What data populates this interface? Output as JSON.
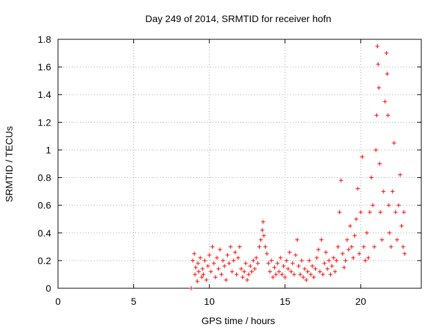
{
  "chart_data": {
    "type": "scatter",
    "title": "Day 249 of 2014, SRMTID for receiver hofn",
    "xlabel": "GPS time / hours",
    "ylabel": "SRMTID / TECUs",
    "xlim": [
      0,
      24
    ],
    "ylim": [
      0,
      1.8
    ],
    "xticks": [
      0,
      5,
      10,
      15,
      20
    ],
    "xtick_labels": [
      "0",
      "5",
      "10",
      "15",
      "20"
    ],
    "yticks": [
      0,
      0.2,
      0.4,
      0.6,
      0.8,
      1.0,
      1.2,
      1.4,
      1.6,
      1.8
    ],
    "ytick_labels": [
      "0",
      "0.2",
      "0.4",
      "0.6",
      "0.8",
      "1",
      "1.2",
      "1.4",
      "1.6",
      "1.8"
    ],
    "grid": true,
    "marker": "+",
    "color": "#ff0000",
    "series": [
      {
        "name": "SRMTID",
        "points": [
          [
            8.8,
            0.0
          ],
          [
            8.9,
            0.2
          ],
          [
            9.0,
            0.25
          ],
          [
            9.05,
            0.1
          ],
          [
            9.1,
            0.15
          ],
          [
            9.2,
            0.05
          ],
          [
            9.25,
            0.18
          ],
          [
            9.3,
            0.12
          ],
          [
            9.4,
            0.22
          ],
          [
            9.5,
            0.08
          ],
          [
            9.55,
            0.14
          ],
          [
            9.6,
            0.1
          ],
          [
            9.7,
            0.2
          ],
          [
            9.8,
            0.06
          ],
          [
            9.9,
            0.16
          ],
          [
            10.0,
            0.24
          ],
          [
            10.1,
            0.12
          ],
          [
            10.2,
            0.3
          ],
          [
            10.3,
            0.18
          ],
          [
            10.4,
            0.08
          ],
          [
            10.5,
            0.22
          ],
          [
            10.6,
            0.14
          ],
          [
            10.7,
            0.28
          ],
          [
            10.8,
            0.1
          ],
          [
            10.9,
            0.2
          ],
          [
            11.0,
            0.16
          ],
          [
            11.1,
            0.06
          ],
          [
            11.2,
            0.24
          ],
          [
            11.3,
            0.18
          ],
          [
            11.4,
            0.3
          ],
          [
            11.5,
            0.12
          ],
          [
            11.6,
            0.2
          ],
          [
            11.7,
            0.26
          ],
          [
            11.8,
            0.1
          ],
          [
            11.9,
            0.22
          ],
          [
            12.0,
            0.3
          ],
          [
            12.1,
            0.14
          ],
          [
            12.2,
            0.08
          ],
          [
            12.3,
            0.12
          ],
          [
            12.4,
            0.18
          ],
          [
            12.5,
            0.06
          ],
          [
            12.6,
            0.1
          ],
          [
            12.7,
            0.16
          ],
          [
            12.8,
            0.12
          ],
          [
            12.9,
            0.2
          ],
          [
            13.0,
            0.14
          ],
          [
            13.1,
            0.22
          ],
          [
            13.2,
            0.18
          ],
          [
            13.3,
            0.3
          ],
          [
            13.4,
            0.35
          ],
          [
            13.5,
            0.42
          ],
          [
            13.55,
            0.48
          ],
          [
            13.6,
            0.38
          ],
          [
            13.7,
            0.3
          ],
          [
            13.8,
            0.25
          ],
          [
            13.9,
            0.18
          ],
          [
            14.0,
            0.12
          ],
          [
            14.1,
            0.2
          ],
          [
            14.2,
            0.08
          ],
          [
            14.3,
            0.15
          ],
          [
            14.4,
            0.1
          ],
          [
            14.5,
            0.18
          ],
          [
            14.6,
            0.12
          ],
          [
            14.7,
            0.22
          ],
          [
            14.8,
            0.1
          ],
          [
            14.9,
            0.16
          ],
          [
            15.0,
            0.08
          ],
          [
            15.1,
            0.2
          ],
          [
            15.2,
            0.14
          ],
          [
            15.3,
            0.26
          ],
          [
            15.4,
            0.12
          ],
          [
            15.5,
            0.18
          ],
          [
            15.6,
            0.1
          ],
          [
            15.7,
            0.24
          ],
          [
            15.8,
            0.35
          ],
          [
            15.9,
            0.16
          ],
          [
            16.0,
            0.1
          ],
          [
            16.1,
            0.2
          ],
          [
            16.2,
            0.08
          ],
          [
            16.3,
            0.14
          ],
          [
            16.4,
            0.06
          ],
          [
            16.5,
            0.12
          ],
          [
            16.6,
            0.2
          ],
          [
            16.7,
            0.1
          ],
          [
            16.8,
            0.16
          ],
          [
            16.9,
            0.08
          ],
          [
            17.0,
            0.14
          ],
          [
            17.1,
            0.22
          ],
          [
            17.2,
            0.28
          ],
          [
            17.3,
            0.12
          ],
          [
            17.4,
            0.35
          ],
          [
            17.5,
            0.1
          ],
          [
            17.6,
            0.18
          ],
          [
            17.7,
            0.26
          ],
          [
            17.8,
            0.14
          ],
          [
            17.9,
            0.2
          ],
          [
            18.0,
            0.1
          ],
          [
            18.1,
            0.16
          ],
          [
            18.2,
            0.22
          ],
          [
            18.3,
            0.12
          ],
          [
            18.4,
            0.2
          ],
          [
            18.5,
            0.3
          ],
          [
            18.6,
            0.55
          ],
          [
            18.7,
            0.78
          ],
          [
            18.8,
            0.25
          ],
          [
            18.9,
            0.15
          ],
          [
            19.0,
            0.2
          ],
          [
            19.1,
            0.35
          ],
          [
            19.2,
            0.28
          ],
          [
            19.3,
            0.45
          ],
          [
            19.4,
            0.3
          ],
          [
            19.5,
            0.22
          ],
          [
            19.6,
            0.38
          ],
          [
            19.7,
            0.5
          ],
          [
            19.8,
            0.72
          ],
          [
            19.9,
            0.25
          ],
          [
            20.0,
            0.55
          ],
          [
            20.1,
            0.95
          ],
          [
            20.2,
            0.3
          ],
          [
            20.3,
            0.2
          ],
          [
            20.4,
            0.4
          ],
          [
            20.5,
            0.22
          ],
          [
            20.6,
            0.55
          ],
          [
            20.7,
            0.8
          ],
          [
            20.8,
            0.6
          ],
          [
            20.9,
            0.3
          ],
          [
            21.0,
            1.0
          ],
          [
            21.05,
            1.25
          ],
          [
            21.1,
            1.75
          ],
          [
            21.15,
            1.62
          ],
          [
            21.2,
            1.45
          ],
          [
            21.25,
            0.9
          ],
          [
            21.3,
            0.55
          ],
          [
            21.4,
            0.35
          ],
          [
            21.5,
            0.7
          ],
          [
            21.6,
            1.35
          ],
          [
            21.7,
            1.7
          ],
          [
            21.75,
            1.55
          ],
          [
            21.8,
            1.25
          ],
          [
            21.85,
            0.6
          ],
          [
            21.9,
            0.4
          ],
          [
            22.0,
            0.3
          ],
          [
            22.1,
            0.7
          ],
          [
            22.2,
            1.05
          ],
          [
            22.3,
            0.55
          ],
          [
            22.4,
            0.35
          ],
          [
            22.5,
            0.6
          ],
          [
            22.6,
            0.82
          ],
          [
            22.7,
            0.45
          ],
          [
            22.8,
            0.3
          ],
          [
            22.85,
            0.55
          ],
          [
            22.9,
            0.25
          ]
        ]
      }
    ]
  }
}
